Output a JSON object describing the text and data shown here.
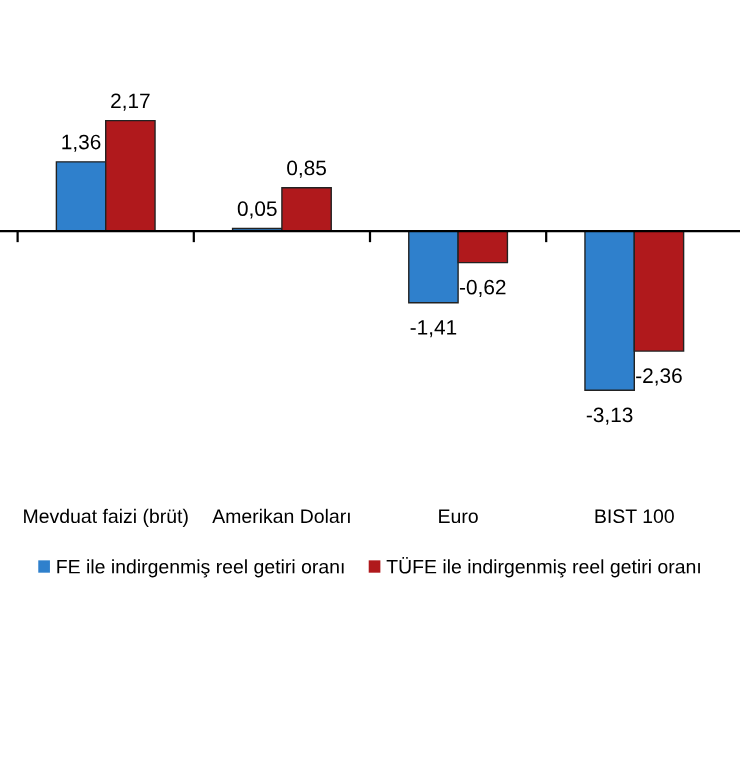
{
  "chart_data": {
    "type": "bar",
    "categories": [
      "Mevduat faizi (brüt)",
      "Amerikan Doları",
      "Euro",
      "BIST 100"
    ],
    "series": [
      {
        "name": "FE ile indirgenmiş reel getiri oranı",
        "color": "#2f80cc",
        "values": [
          1.36,
          0.05,
          -1.41,
          -3.13
        ],
        "value_labels": [
          "1,36",
          "0,05",
          "-1,41",
          "-3,13"
        ]
      },
      {
        "name": "TÜFE ile indirgenmiş reel getiri oranı",
        "color": "#b0191c",
        "values": [
          2.17,
          0.85,
          -0.62,
          -2.36
        ],
        "value_labels": [
          "2,17",
          "0,85",
          "-0,62",
          "-2,36"
        ]
      }
    ],
    "legend": "bottom",
    "grid": false
  }
}
